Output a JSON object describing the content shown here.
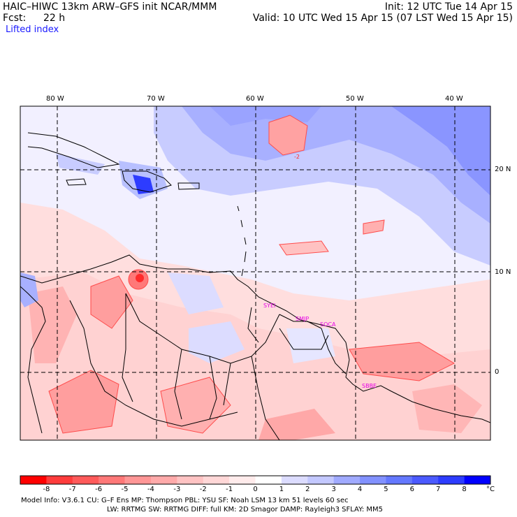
{
  "header": {
    "title_left": "HAIC–HIWC 13km ARW–GFS init   NCAR/MMM",
    "fcst_label": "Fcst:",
    "fcst_value": "22 h",
    "field_name": "Lifted index",
    "init": "Init: 12 UTC Tue 14 Apr 15",
    "valid": "Valid: 10 UTC Wed 15 Apr 15 (07 LST Wed 15 Apr 15)"
  },
  "map": {
    "longitude_labels": [
      "80 W",
      "70 W",
      "60 W",
      "50 W",
      "40 W"
    ],
    "latitude_labels": [
      "20 N",
      "10 N",
      "0"
    ],
    "stations": [
      "SYEI",
      "SMJP",
      "SOCA",
      "SBBE"
    ],
    "contour_labels": [
      "-2"
    ]
  },
  "colorbar": {
    "ticks": [
      "-8",
      "-7",
      "-6",
      "-5",
      "-4",
      "-3",
      "-2",
      "-1",
      "0",
      "1",
      "2",
      "3",
      "4",
      "5",
      "6",
      "7",
      "8"
    ],
    "unit": "°C",
    "colors": [
      "#ff0000",
      "#ff3c3c",
      "#ff5a5a",
      "#ff7878",
      "#ff9696",
      "#ffaaaa",
      "#ffc3c3",
      "#ffd7d7",
      "#ffebeb",
      "#ffffff",
      "#dcdcff",
      "#c3c8ff",
      "#a0aaff",
      "#8291ff",
      "#6478ff",
      "#4b5aff",
      "#2d3cff",
      "#0000ff"
    ]
  },
  "footer": {
    "line1": "Model Info: V3.6.1    CU: G–F Ens  MP: Thompson      PBL: YSU       SF: Noah LSM      13 km    51 levels     60 sec",
    "line2": "LW: RRTMG    SW: RRTMG   DIFF: full    KM: 2D Smagor  DAMP: Rayleigh3   SFLAY: MM5"
  }
}
